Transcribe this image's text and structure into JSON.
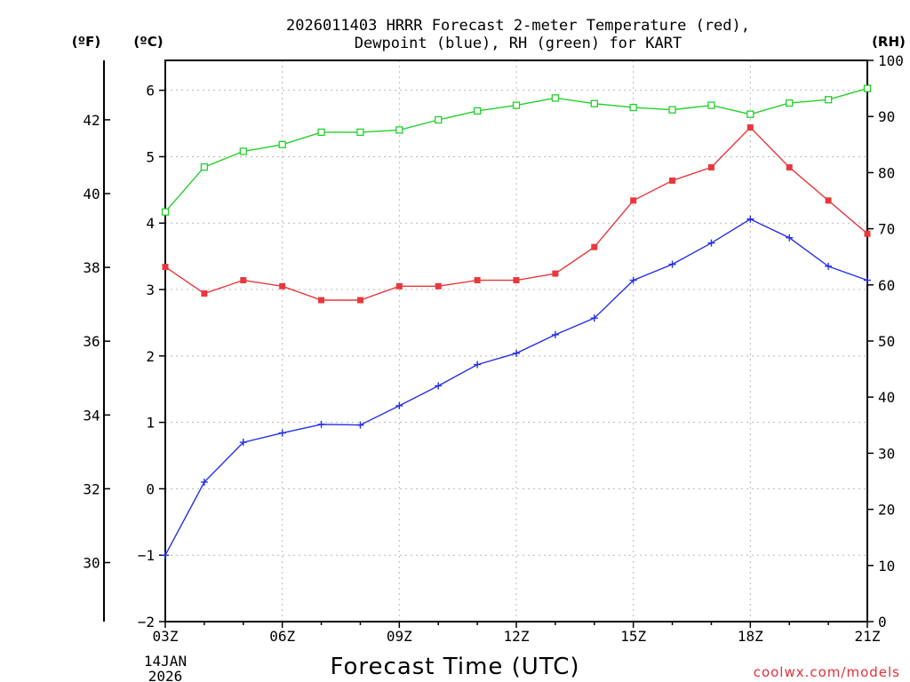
{
  "chart_data": {
    "type": "line",
    "title_line1": "2026011403 HRRR Forecast 2-meter Temperature (red),",
    "title_line2": "Dewpoint (blue), RH (green) for KART",
    "xlabel": "Forecast Time (UTC)",
    "date_label_day": "14JAN",
    "date_label_year": "2026",
    "credit": "coolwx.com/models",
    "unit_left_f": "(ºF)",
    "unit_left_c": "(ºC)",
    "unit_right": "(RH)",
    "x": [
      3,
      4,
      5,
      6,
      7,
      8,
      9,
      10,
      11,
      12,
      13,
      14,
      15,
      16,
      17,
      18,
      19,
      20,
      21
    ],
    "x_ticks": [
      3,
      6,
      9,
      12,
      15,
      18,
      21
    ],
    "x_tick_labels": [
      "03Z",
      "06Z",
      "09Z",
      "12Z",
      "15Z",
      "18Z",
      "21Z"
    ],
    "ylim_c": [
      -2,
      6.45
    ],
    "y_ticks_c": [
      -2,
      -1,
      0,
      1,
      2,
      3,
      4,
      5,
      6
    ],
    "y_tick_labels_c": [
      "−2",
      "−1",
      "0",
      "1",
      "2",
      "3",
      "4",
      "5",
      "6"
    ],
    "y_ticks_f": [
      30,
      32,
      34,
      36,
      38,
      40,
      42
    ],
    "y_tick_labels_f": [
      "30",
      "32",
      "34",
      "36",
      "38",
      "40",
      "42"
    ],
    "ylim_rh": [
      0,
      100
    ],
    "y_ticks_rh": [
      0,
      10,
      20,
      30,
      40,
      50,
      60,
      70,
      80,
      90,
      100
    ],
    "y_tick_labels_rh": [
      "0",
      "10",
      "20",
      "30",
      "40",
      "50",
      "60",
      "70",
      "80",
      "90",
      "100"
    ],
    "series": [
      {
        "name": "Temperature",
        "unit": "C",
        "color": "#e8383d",
        "marker": "filled-square",
        "values": [
          3.34,
          2.94,
          3.14,
          3.05,
          2.84,
          2.84,
          3.05,
          3.05,
          3.14,
          3.14,
          3.24,
          3.64,
          4.34,
          4.64,
          4.84,
          5.44,
          4.84,
          4.34,
          3.84
        ]
      },
      {
        "name": "Dewpoint",
        "unit": "C",
        "color": "#2430e8",
        "marker": "plus",
        "values": [
          -1.0,
          0.1,
          0.7,
          0.84,
          0.97,
          0.96,
          1.25,
          1.55,
          1.87,
          2.04,
          2.32,
          2.57,
          3.14,
          3.38,
          3.7,
          4.06,
          3.78,
          3.35,
          3.14
        ]
      },
      {
        "name": "RH",
        "unit": "%",
        "color": "#22d02a",
        "marker": "open-square",
        "values": [
          73,
          81,
          83.8,
          85,
          87.2,
          87.2,
          87.6,
          89.4,
          91,
          92,
          93.3,
          92.3,
          91.6,
          91.2,
          92,
          90.4,
          92.4,
          93,
          95
        ]
      }
    ]
  }
}
